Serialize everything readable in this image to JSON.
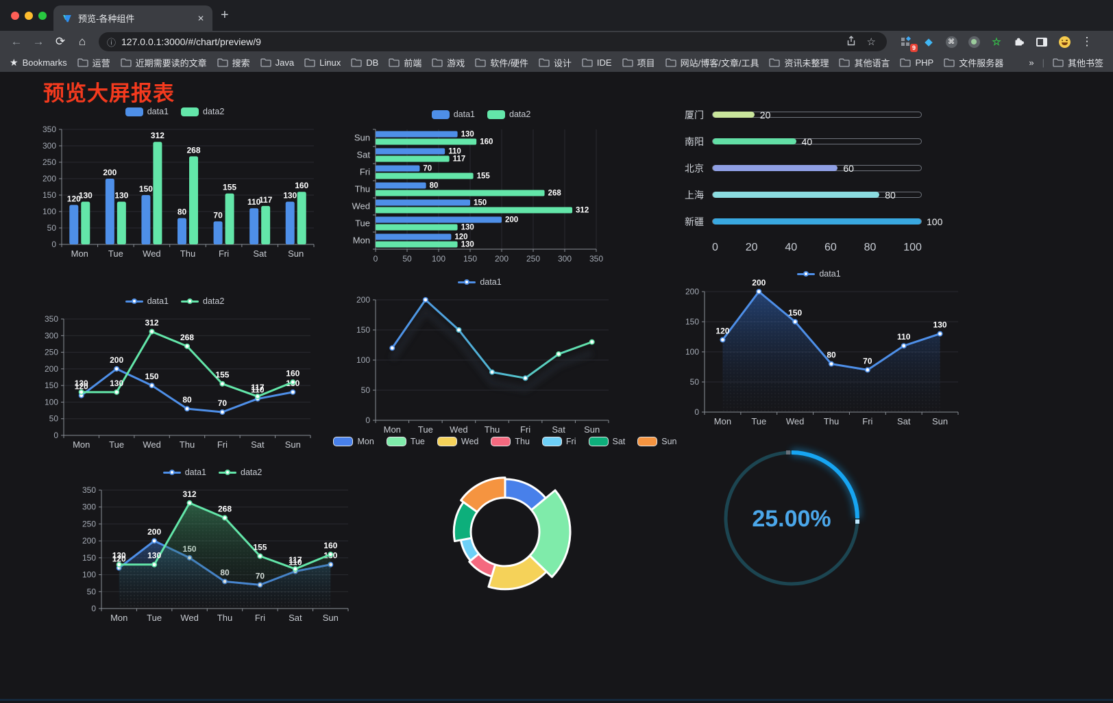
{
  "browser": {
    "tab_title": "预览-各种组件",
    "tab_close": "✕",
    "new_tab": "+",
    "url": "127.0.0.1:3000/#/chart/preview/9",
    "url_info_icon": "ⓘ",
    "extensions_badge": "9",
    "traffic_lights": [
      "#FF5F57",
      "#FEBC2E",
      "#28C840"
    ],
    "bookmarks_bar": {
      "root_label": "Bookmarks",
      "folders": [
        "运营",
        "近期需要读的文章",
        "搜索",
        "Java",
        "Linux",
        "DB",
        "前端",
        "游戏",
        "软件/硬件",
        "设计",
        "IDE",
        "项目",
        "网站/博客/文章/工具",
        "资讯未整理",
        "其他语言",
        "PHP",
        "文件服务器"
      ],
      "overflow": "»",
      "other_bookmarks": "其他书签"
    }
  },
  "page": {
    "title": "预览大屏报表",
    "title_color": "#F43A1E"
  },
  "chart_data": [
    {
      "id": "grouped-bar",
      "type": "bar",
      "legend_position": "top",
      "categories": [
        "Mon",
        "Tue",
        "Wed",
        "Thu",
        "Fri",
        "Sat",
        "Sun"
      ],
      "series": [
        {
          "name": "data1",
          "color": "#4E8FE8",
          "values": [
            120,
            200,
            150,
            80,
            70,
            110,
            130
          ]
        },
        {
          "name": "data2",
          "color": "#63E6A9",
          "values": [
            130,
            130,
            312,
            268,
            155,
            117,
            160
          ]
        }
      ],
      "ylim": [
        0,
        350
      ],
      "ystep": 50,
      "value_labels": true,
      "grid": true
    },
    {
      "id": "horizontal-bar",
      "type": "hbar",
      "legend_position": "top",
      "categories": [
        "Mon",
        "Tue",
        "Wed",
        "Thu",
        "Fri",
        "Sat",
        "Sun"
      ],
      "y_order": "Sun-top",
      "series": [
        {
          "name": "data1",
          "color": "#4E8FE8",
          "values": [
            120,
            200,
            150,
            80,
            70,
            110,
            130
          ]
        },
        {
          "name": "data2",
          "color": "#63E6A9",
          "values": [
            130,
            130,
            312,
            268,
            155,
            117,
            160
          ]
        }
      ],
      "xlim": [
        0,
        350
      ],
      "xstep": 50,
      "value_labels": true,
      "grid": true
    },
    {
      "id": "progress-list",
      "type": "progress",
      "items": [
        {
          "label": "厦门",
          "value": 20,
          "color": "#C9E59B"
        },
        {
          "label": "南阳",
          "value": 40,
          "color": "#63DFA6"
        },
        {
          "label": "北京",
          "value": 60,
          "color": "#8F9FE4"
        },
        {
          "label": "上海",
          "value": 80,
          "color": "#8BDCE0"
        },
        {
          "label": "新疆",
          "value": 100,
          "color": "#39A8E0"
        }
      ],
      "xlim": [
        0,
        100
      ],
      "axis_ticks": [
        0,
        20,
        40,
        60,
        80,
        100
      ]
    },
    {
      "id": "line-two-series",
      "type": "line",
      "legend_position": "top",
      "categories": [
        "Mon",
        "Tue",
        "Wed",
        "Thu",
        "Fri",
        "Sat",
        "Sun"
      ],
      "series": [
        {
          "name": "data1",
          "color": "#4E8FE8",
          "values": [
            120,
            200,
            150,
            80,
            70,
            110,
            130
          ]
        },
        {
          "name": "data2",
          "color": "#63E6A9",
          "values": [
            130,
            130,
            312,
            268,
            155,
            117,
            160
          ]
        }
      ],
      "ylim": [
        0,
        350
      ],
      "ystep": 50,
      "value_labels": true,
      "grid": true
    },
    {
      "id": "gradient-line",
      "type": "line-gradient",
      "legend_position": "top",
      "categories": [
        "Mon",
        "Tue",
        "Wed",
        "Thu",
        "Fri",
        "Sat",
        "Sun"
      ],
      "series": [
        {
          "name": "data1",
          "gradient": [
            "#4E8FE8",
            "#51B9D1",
            "#63E6A9"
          ],
          "values": [
            120,
            200,
            150,
            80,
            70,
            110,
            130
          ]
        }
      ],
      "ylim": [
        0,
        200
      ],
      "ystep": 50,
      "value_labels": false,
      "grid": true,
      "shadow": true
    },
    {
      "id": "area-line",
      "type": "area",
      "legend_position": "top",
      "categories": [
        "Mon",
        "Tue",
        "Wed",
        "Thu",
        "Fri",
        "Sat",
        "Sun"
      ],
      "series": [
        {
          "name": "data1",
          "color": "#4E8FE8",
          "area_top": "rgba(45,95,175,0.60)",
          "area_bottom": "rgba(20,35,60,0.02)",
          "values": [
            120,
            200,
            150,
            80,
            70,
            110,
            130
          ]
        }
      ],
      "ylim": [
        0,
        200
      ],
      "ystep": 50,
      "value_labels": true,
      "grid": true
    },
    {
      "id": "two-area-line",
      "type": "area",
      "legend_position": "top",
      "categories": [
        "Mon",
        "Tue",
        "Wed",
        "Thu",
        "Fri",
        "Sat",
        "Sun"
      ],
      "series": [
        {
          "name": "data1",
          "color": "#4E8FE8",
          "area_top": "rgba(56,110,190,0.50)",
          "area_bottom": "rgba(20,35,60,0.02)",
          "values": [
            120,
            200,
            150,
            80,
            70,
            110,
            130
          ]
        },
        {
          "name": "data2",
          "color": "#63E6A9",
          "area_top": "rgba(62,150,100,0.55)",
          "area_bottom": "rgba(15,40,28,0.02)",
          "values": [
            130,
            130,
            312,
            268,
            155,
            117,
            160
          ]
        }
      ],
      "ylim": [
        0,
        350
      ],
      "ystep": 50,
      "value_labels": true,
      "grid": true
    },
    {
      "id": "rose-pie",
      "type": "pie",
      "rose_type": true,
      "donut": true,
      "legend_position": "top",
      "items": [
        {
          "name": "Mon",
          "value": 120,
          "color": "#4880EA"
        },
        {
          "name": "Tue",
          "value": 200,
          "color": "#7FEBAA"
        },
        {
          "name": "Wed",
          "value": 150,
          "color": "#F5D259"
        },
        {
          "name": "Thu",
          "value": 80,
          "color": "#F4697F"
        },
        {
          "name": "Fri",
          "value": 70,
          "color": "#6ED0F7"
        },
        {
          "name": "Sat",
          "value": 110,
          "color": "#0DAF7B"
        },
        {
          "name": "Sun",
          "value": 130,
          "color": "#F59440"
        }
      ]
    },
    {
      "id": "gauge",
      "type": "gauge",
      "percent": 25,
      "value_label": "25.00%",
      "arc_color": "#17A5F2",
      "track_color": "#1C4551",
      "text_color": "#4BA7EA"
    }
  ]
}
